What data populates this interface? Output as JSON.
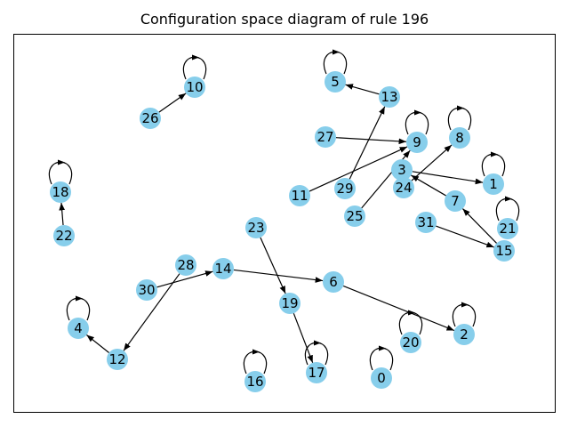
{
  "title": "Configuration space diagram of rule 196",
  "colors": {
    "node": "#87CEEB",
    "edge": "#000000",
    "frame": "#000000"
  },
  "nodes": [
    {
      "id": "0",
      "label": "0"
    },
    {
      "id": "1",
      "label": "1"
    },
    {
      "id": "2",
      "label": "2"
    },
    {
      "id": "3",
      "label": "3"
    },
    {
      "id": "4",
      "label": "4"
    },
    {
      "id": "5",
      "label": "5"
    },
    {
      "id": "6",
      "label": "6"
    },
    {
      "id": "7",
      "label": "7"
    },
    {
      "id": "8",
      "label": "8"
    },
    {
      "id": "9",
      "label": "9"
    },
    {
      "id": "10",
      "label": "10"
    },
    {
      "id": "11",
      "label": "11"
    },
    {
      "id": "12",
      "label": "12"
    },
    {
      "id": "13",
      "label": "13"
    },
    {
      "id": "14",
      "label": "14"
    },
    {
      "id": "15",
      "label": "15"
    },
    {
      "id": "16",
      "label": "16"
    },
    {
      "id": "17",
      "label": "17"
    },
    {
      "id": "18",
      "label": "18"
    },
    {
      "id": "19",
      "label": "19"
    },
    {
      "id": "20",
      "label": "20"
    },
    {
      "id": "21",
      "label": "21"
    },
    {
      "id": "22",
      "label": "22"
    },
    {
      "id": "23",
      "label": "23"
    },
    {
      "id": "24",
      "label": "24"
    },
    {
      "id": "25",
      "label": "25"
    },
    {
      "id": "26",
      "label": "26"
    },
    {
      "id": "27",
      "label": "27"
    },
    {
      "id": "28",
      "label": "28"
    },
    {
      "id": "29",
      "label": "29"
    },
    {
      "id": "30",
      "label": "30"
    },
    {
      "id": "31",
      "label": "31"
    }
  ],
  "edges": [
    {
      "from": "0",
      "to": "0"
    },
    {
      "from": "1",
      "to": "1"
    },
    {
      "from": "2",
      "to": "2"
    },
    {
      "from": "3",
      "to": "1"
    },
    {
      "from": "4",
      "to": "4"
    },
    {
      "from": "5",
      "to": "5"
    },
    {
      "from": "6",
      "to": "2"
    },
    {
      "from": "7",
      "to": "3"
    },
    {
      "from": "8",
      "to": "8"
    },
    {
      "from": "9",
      "to": "9"
    },
    {
      "from": "10",
      "to": "10"
    },
    {
      "from": "11",
      "to": "9"
    },
    {
      "from": "12",
      "to": "4"
    },
    {
      "from": "13",
      "to": "5"
    },
    {
      "from": "14",
      "to": "6"
    },
    {
      "from": "15",
      "to": "7"
    },
    {
      "from": "16",
      "to": "16"
    },
    {
      "from": "17",
      "to": "17"
    },
    {
      "from": "18",
      "to": "18"
    },
    {
      "from": "19",
      "to": "17"
    },
    {
      "from": "20",
      "to": "20"
    },
    {
      "from": "21",
      "to": "21"
    },
    {
      "from": "22",
      "to": "18"
    },
    {
      "from": "23",
      "to": "19"
    },
    {
      "from": "24",
      "to": "8"
    },
    {
      "from": "25",
      "to": "9"
    },
    {
      "from": "26",
      "to": "10"
    },
    {
      "from": "27",
      "to": "9"
    },
    {
      "from": "28",
      "to": "12"
    },
    {
      "from": "29",
      "to": "13"
    },
    {
      "from": "30",
      "to": "14"
    },
    {
      "from": "31",
      "to": "15"
    }
  ]
}
